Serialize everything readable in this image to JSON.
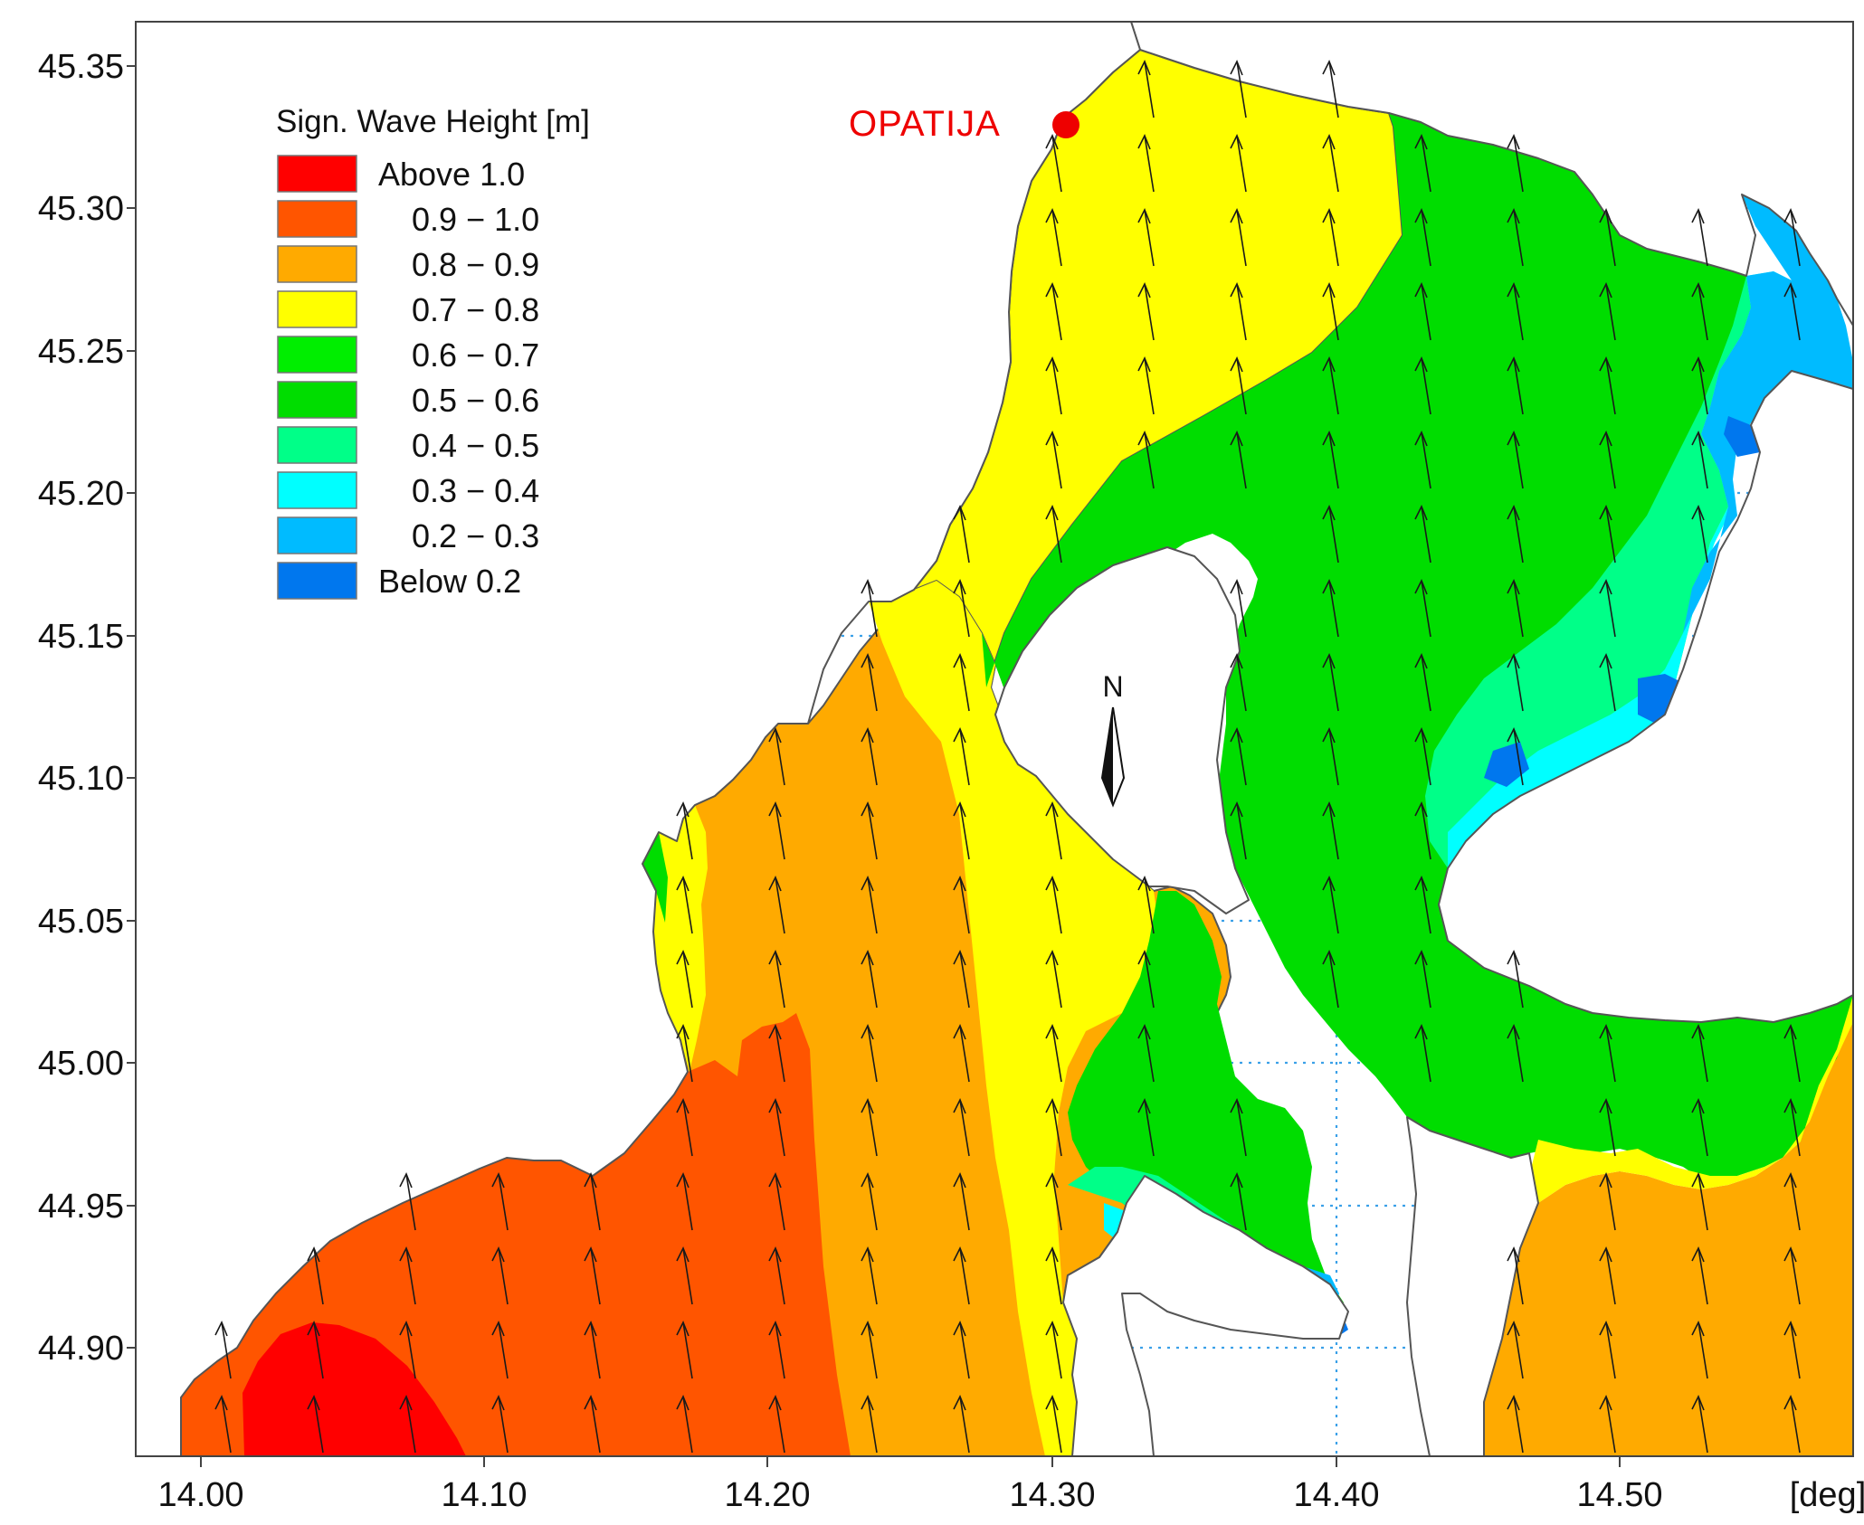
{
  "legend": {
    "title": "Sign. Wave Height [m]",
    "items": [
      {
        "label": "Above 1.0",
        "color": "#ff0000"
      },
      {
        "label": "0.9 − 1.0",
        "color": "#ff5500"
      },
      {
        "label": "0.8 − 0.9",
        "color": "#ffaa00"
      },
      {
        "label": "0.7 − 0.8",
        "color": "#ffff00"
      },
      {
        "label": "0.6 − 0.7",
        "color": "#00ee00"
      },
      {
        "label": "0.5 − 0.6",
        "color": "#00dd00"
      },
      {
        "label": "0.4 − 0.5",
        "color": "#00ff88"
      },
      {
        "label": "0.3 − 0.4",
        "color": "#00ffff"
      },
      {
        "label": "0.2 − 0.3",
        "color": "#00bbff"
      },
      {
        "label": "Below 0.2",
        "color": "#0077ee"
      }
    ]
  },
  "x_axis": {
    "tick_labels": [
      "14.00",
      "14.10",
      "14.20",
      "14.30",
      "14.40",
      "14.50"
    ],
    "unit": "[deg]"
  },
  "y_axis": {
    "tick_labels": [
      "45.35",
      "45.30",
      "45.25",
      "45.20",
      "45.15",
      "45.10",
      "45.05",
      "45.00",
      "44.95",
      "44.90"
    ]
  },
  "place_label": {
    "text": "OPATIJA",
    "color": "#ee0000"
  },
  "north_arrow_label": "N"
}
